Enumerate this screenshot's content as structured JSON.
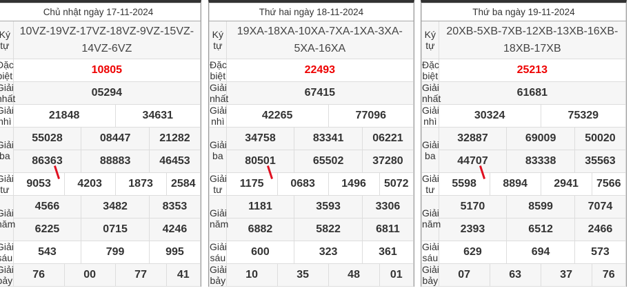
{
  "labels": {
    "kytu": "Ký tự",
    "db": "Đặc biệt",
    "g1": "Giải nhất",
    "g2": "Giải nhì",
    "g3": "Giải ba",
    "g4": "Giải tư",
    "g5": "Giải năm",
    "g6": "Giải sáu",
    "g7": "Giải bảy"
  },
  "colors": {
    "special": "#ee0000",
    "annotation": "#e01020"
  },
  "days": [
    {
      "title": "Chủ nhật ngày 17-11-2024",
      "kytu": "10VZ-19VZ-17VZ-18VZ-9VZ-15VZ-14VZ-6VZ",
      "db": "10805",
      "g1": "05294",
      "g2": [
        "21848",
        "34631"
      ],
      "g3": [
        "55028",
        "08447",
        "21282",
        "86363",
        "88883",
        "46453"
      ],
      "g4": [
        "9053",
        "4203",
        "1873",
        "2584"
      ],
      "g5": [
        "4566",
        "3482",
        "8353",
        "6225",
        "0715",
        "4246"
      ],
      "g6": [
        "543",
        "799",
        "995"
      ],
      "g7": [
        "76",
        "00",
        "77",
        "41"
      ]
    },
    {
      "title": "Thứ hai ngày 18-11-2024",
      "kytu": "19XA-18XA-10XA-7XA-1XA-3XA-5XA-16XA",
      "db": "22493",
      "g1": "67415",
      "g2": [
        "42265",
        "77096"
      ],
      "g3": [
        "34758",
        "83341",
        "06221",
        "80501",
        "65502",
        "37280"
      ],
      "g4": [
        "1175",
        "0683",
        "1496",
        "5072"
      ],
      "g5": [
        "1181",
        "3593",
        "3306",
        "6882",
        "5822",
        "6811"
      ],
      "g6": [
        "600",
        "323",
        "361"
      ],
      "g7": [
        "10",
        "35",
        "48",
        "01"
      ]
    },
    {
      "title": "Thứ ba ngày 19-11-2024",
      "kytu": "20XB-5XB-7XB-12XB-13XB-16XB-18XB-17XB",
      "db": "25213",
      "g1": "61681",
      "g2": [
        "30324",
        "75329"
      ],
      "g3": [
        "32887",
        "69009",
        "50020",
        "44707",
        "83338",
        "35563"
      ],
      "g4": [
        "5598",
        "8894",
        "2941",
        "7566"
      ],
      "g5": [
        "5170",
        "8599",
        "7074",
        "2393",
        "6512",
        "2466"
      ],
      "g6": [
        "629",
        "694",
        "573"
      ],
      "g7": [
        "07",
        "63",
        "37",
        "76"
      ]
    }
  ]
}
